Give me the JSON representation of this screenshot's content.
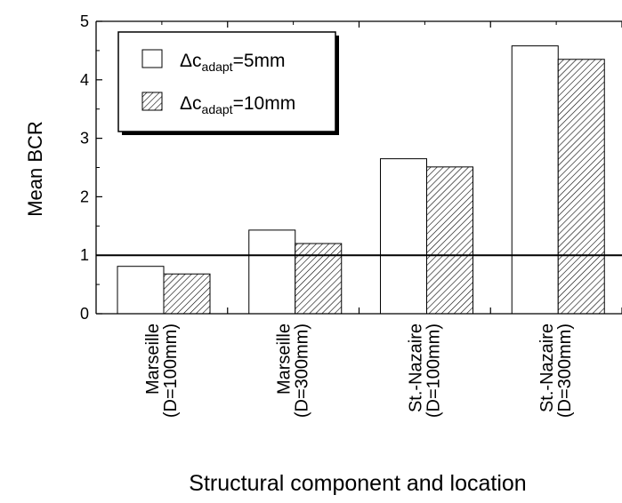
{
  "chart_data": {
    "type": "bar",
    "categories": [
      [
        "Marseille",
        "(D=100mm)"
      ],
      [
        "Marseille",
        "(D=300mm)"
      ],
      [
        "St.-Nazaire",
        "(D=100mm)"
      ],
      [
        "St.-Nazaire",
        "(D=300mm)"
      ]
    ],
    "series": [
      {
        "label_main": "Δc",
        "label_sub": "adapt",
        "label_rest": "=5mm",
        "fill": "white",
        "values": [
          0.81,
          1.43,
          2.65,
          4.58
        ]
      },
      {
        "label_main": "Δc",
        "label_sub": "adapt",
        "label_rest": "=10mm",
        "fill": "hatch",
        "values": [
          0.68,
          1.2,
          2.51,
          4.35
        ]
      }
    ],
    "ylabel": "Mean BCR",
    "xlabel": "Structural component and location",
    "ylim": [
      0,
      5
    ],
    "yticks": [
      "0",
      "1",
      "2",
      "3",
      "4",
      "5"
    ],
    "reference_line": 1,
    "legend_position": "top-left",
    "grid": false
  }
}
